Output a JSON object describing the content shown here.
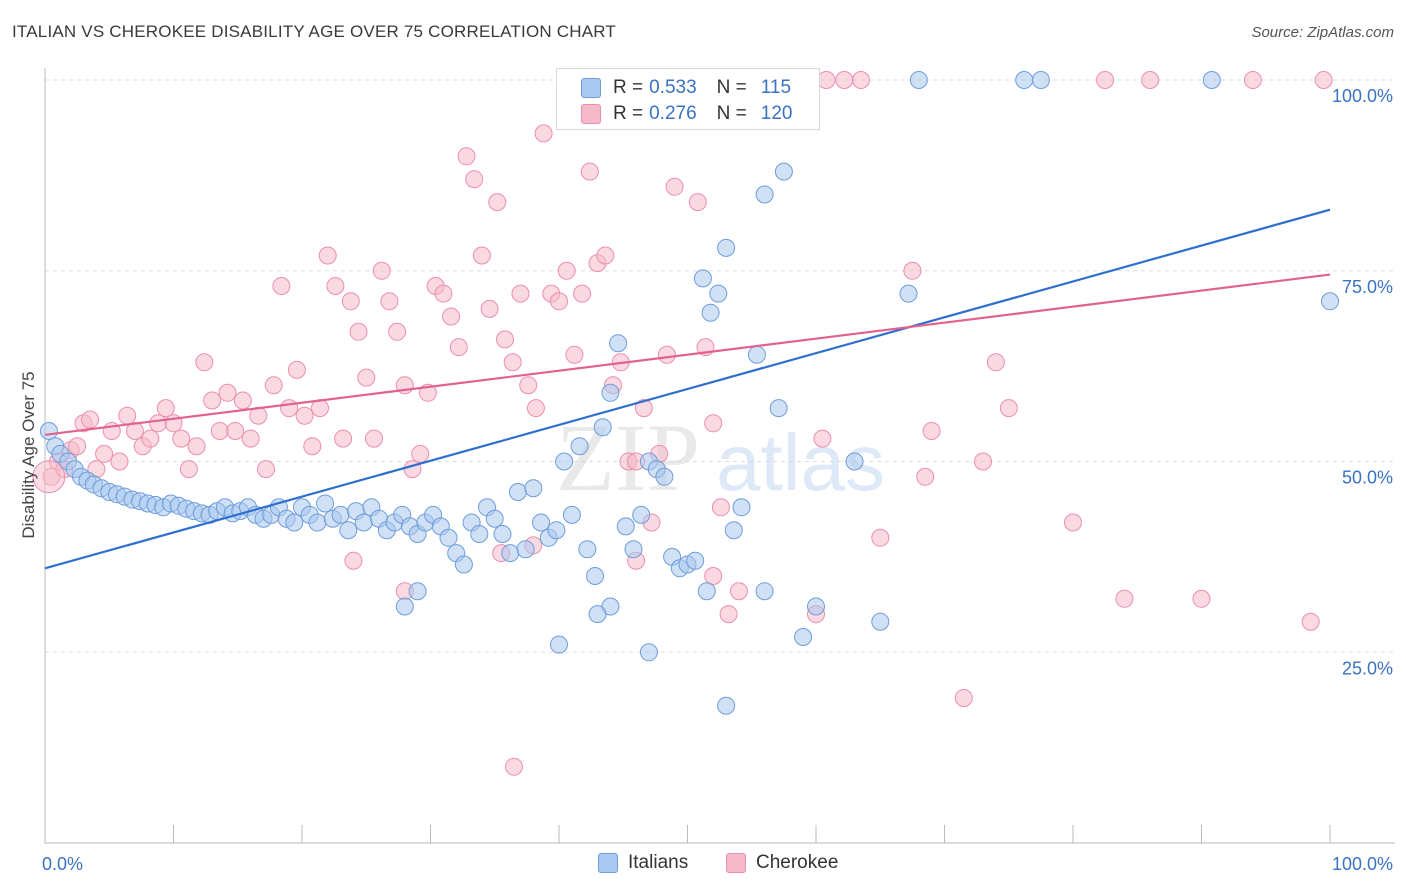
{
  "title": "ITALIAN VS CHEROKEE DISABILITY AGE OVER 75 CORRELATION CHART",
  "source": "Source: ZipAtlas.com",
  "watermark": {
    "zip": "ZIP",
    "atlas": "atlas"
  },
  "legend_top": {
    "rows": [
      {
        "r_label": "R =",
        "r_value": "0.533",
        "n_label": "N =",
        "n_value": "115"
      },
      {
        "r_label": "R =",
        "r_value": "0.276",
        "n_label": "N =",
        "n_value": "120"
      }
    ]
  },
  "legend_bottom": {
    "italians": "Italians",
    "cherokee": "Cherokee"
  },
  "colors": {
    "blue_fill": "#a9c8ef",
    "blue_stroke": "#6f9ddb",
    "blue_line": "#2f6fcf",
    "pink_fill": "#f6b9cb",
    "pink_stroke": "#ec8fab",
    "pink_line": "#e2628f",
    "tick_label": "#3a72c4",
    "grid": "#dedede",
    "axis": "#bbbbbb"
  },
  "chart_data": {
    "type": "scatter",
    "title": "ITALIAN VS CHEROKEE DISABILITY AGE OVER 75 CORRELATION CHART",
    "xlabel": "",
    "ylabel": "Disability Age Over 75",
    "xlim": [
      0,
      100
    ],
    "ylim": [
      0,
      103
    ],
    "x_tick_labels": [
      "0.0%",
      "100.0%"
    ],
    "y_ticks": [
      25,
      50,
      75,
      100
    ],
    "y_tick_labels": [
      "25.0%",
      "50.0%",
      "75.0%",
      "100.0%"
    ],
    "grid": true,
    "legend_position": "top-center",
    "series": [
      {
        "name": "Italians",
        "r": 0.533,
        "n": 115,
        "trend": {
          "x": [
            0,
            100
          ],
          "y": [
            36,
            83
          ]
        },
        "points": [
          [
            0.3,
            54
          ],
          [
            0.8,
            52
          ],
          [
            1.2,
            51
          ],
          [
            1.8,
            50
          ],
          [
            2.3,
            49
          ],
          [
            2.8,
            48
          ],
          [
            3.3,
            47.5
          ],
          [
            3.8,
            47
          ],
          [
            4.4,
            46.5
          ],
          [
            5.0,
            46
          ],
          [
            5.6,
            45.7
          ],
          [
            6.2,
            45.4
          ],
          [
            6.8,
            45
          ],
          [
            7.4,
            44.8
          ],
          [
            8.0,
            44.5
          ],
          [
            8.6,
            44.3
          ],
          [
            9.2,
            44
          ],
          [
            9.8,
            44.5
          ],
          [
            10.4,
            44.2
          ],
          [
            11.0,
            43.8
          ],
          [
            11.6,
            43.5
          ],
          [
            12.2,
            43.2
          ],
          [
            12.8,
            43
          ],
          [
            13.4,
            43.5
          ],
          [
            14.0,
            44
          ],
          [
            14.6,
            43.2
          ],
          [
            15.2,
            43.5
          ],
          [
            15.8,
            44
          ],
          [
            16.4,
            43
          ],
          [
            17.0,
            42.5
          ],
          [
            17.6,
            43
          ],
          [
            18.2,
            44
          ],
          [
            18.8,
            42.5
          ],
          [
            19.4,
            42
          ],
          [
            20.0,
            44
          ],
          [
            20.6,
            43
          ],
          [
            21.2,
            42
          ],
          [
            21.8,
            44.5
          ],
          [
            22.4,
            42.5
          ],
          [
            23.0,
            43
          ],
          [
            23.6,
            41
          ],
          [
            24.2,
            43.5
          ],
          [
            24.8,
            42
          ],
          [
            25.4,
            44
          ],
          [
            26.0,
            42.5
          ],
          [
            26.6,
            41
          ],
          [
            27.2,
            42
          ],
          [
            27.8,
            43
          ],
          [
            28.4,
            41.5
          ],
          [
            29.0,
            40.5
          ],
          [
            29.6,
            42
          ],
          [
            30.2,
            43
          ],
          [
            30.8,
            41.5
          ],
          [
            31.4,
            40
          ],
          [
            32.0,
            38
          ],
          [
            32.6,
            36.5
          ],
          [
            33.2,
            42
          ],
          [
            33.8,
            40.5
          ],
          [
            34.4,
            44
          ],
          [
            35.0,
            42.5
          ],
          [
            35.6,
            40.5
          ],
          [
            36.2,
            38
          ],
          [
            36.8,
            46
          ],
          [
            37.4,
            38.5
          ],
          [
            38.0,
            46.5
          ],
          [
            38.6,
            42
          ],
          [
            39.2,
            40
          ],
          [
            39.8,
            41
          ],
          [
            40.4,
            50
          ],
          [
            41.0,
            43
          ],
          [
            41.6,
            52
          ],
          [
            42.2,
            38.5
          ],
          [
            42.8,
            35
          ],
          [
            43.4,
            54.5
          ],
          [
            44.0,
            59
          ],
          [
            44.6,
            65.5
          ],
          [
            45.2,
            41.5
          ],
          [
            45.8,
            38.5
          ],
          [
            46.4,
            43
          ],
          [
            47.0,
            50
          ],
          [
            47.6,
            49
          ],
          [
            48.2,
            48
          ],
          [
            48.8,
            37.5
          ],
          [
            49.4,
            36
          ],
          [
            50.0,
            36.5
          ],
          [
            50.6,
            37
          ],
          [
            51.2,
            74
          ],
          [
            51.8,
            69.5
          ],
          [
            52.4,
            72
          ],
          [
            53.0,
            78
          ],
          [
            53.6,
            41
          ],
          [
            54.2,
            44
          ],
          [
            55.4,
            64
          ],
          [
            56.0,
            85
          ],
          [
            57.1,
            57
          ],
          [
            57.5,
            88
          ],
          [
            63.0,
            50
          ],
          [
            67.2,
            72
          ],
          [
            68.0,
            100
          ],
          [
            76.2,
            100
          ],
          [
            77.5,
            100
          ],
          [
            90.8,
            100
          ],
          [
            100.0,
            71
          ],
          [
            51.5,
            33
          ],
          [
            53.0,
            18
          ],
          [
            47.0,
            25
          ],
          [
            40.0,
            26
          ],
          [
            44.0,
            31
          ],
          [
            56.0,
            33
          ],
          [
            43.0,
            30
          ],
          [
            59.0,
            27
          ],
          [
            60.0,
            31
          ],
          [
            28.0,
            31
          ],
          [
            29.0,
            33
          ],
          [
            65.0,
            29
          ]
        ]
      },
      {
        "name": "Cherokee",
        "r": 0.276,
        "n": 120,
        "trend": {
          "x": [
            0,
            100
          ],
          "y": [
            53.5,
            74.5
          ]
        },
        "points": [
          [
            0.5,
            48
          ],
          [
            1.0,
            50
          ],
          [
            1.5,
            49
          ],
          [
            2.0,
            51.5
          ],
          [
            2.5,
            52
          ],
          [
            3.0,
            55
          ],
          [
            3.5,
            55.5
          ],
          [
            4.0,
            49
          ],
          [
            4.6,
            51
          ],
          [
            5.2,
            54
          ],
          [
            5.8,
            50
          ],
          [
            6.4,
            56
          ],
          [
            7.0,
            54
          ],
          [
            7.6,
            52
          ],
          [
            8.2,
            53
          ],
          [
            8.8,
            55
          ],
          [
            9.4,
            57
          ],
          [
            10.0,
            55
          ],
          [
            10.6,
            53
          ],
          [
            11.2,
            49
          ],
          [
            11.8,
            52
          ],
          [
            12.4,
            63
          ],
          [
            13.0,
            58
          ],
          [
            13.6,
            54
          ],
          [
            14.2,
            59
          ],
          [
            14.8,
            54
          ],
          [
            15.4,
            58
          ],
          [
            16.0,
            53
          ],
          [
            16.6,
            56
          ],
          [
            17.2,
            49
          ],
          [
            17.8,
            60
          ],
          [
            18.4,
            73
          ],
          [
            19.0,
            57
          ],
          [
            19.6,
            62
          ],
          [
            20.2,
            56
          ],
          [
            20.8,
            52
          ],
          [
            21.4,
            57
          ],
          [
            22.0,
            77
          ],
          [
            22.6,
            73
          ],
          [
            23.2,
            53
          ],
          [
            23.8,
            71
          ],
          [
            24.4,
            67
          ],
          [
            25.0,
            61
          ],
          [
            25.6,
            53
          ],
          [
            26.2,
            75
          ],
          [
            26.8,
            71
          ],
          [
            27.4,
            67
          ],
          [
            28.0,
            60
          ],
          [
            28.6,
            49
          ],
          [
            29.2,
            51
          ],
          [
            29.8,
            59
          ],
          [
            30.4,
            73
          ],
          [
            31.0,
            72
          ],
          [
            31.6,
            69
          ],
          [
            32.2,
            65
          ],
          [
            32.8,
            90
          ],
          [
            33.4,
            87
          ],
          [
            34.0,
            77
          ],
          [
            34.6,
            70
          ],
          [
            35.2,
            84
          ],
          [
            35.8,
            66
          ],
          [
            36.4,
            63
          ],
          [
            37.0,
            72
          ],
          [
            37.6,
            60
          ],
          [
            38.2,
            57
          ],
          [
            38.8,
            93
          ],
          [
            39.4,
            72
          ],
          [
            40.0,
            71
          ],
          [
            40.6,
            75
          ],
          [
            41.2,
            64
          ],
          [
            41.8,
            72
          ],
          [
            42.4,
            88
          ],
          [
            43.0,
            76
          ],
          [
            43.6,
            77
          ],
          [
            44.2,
            60
          ],
          [
            44.8,
            63
          ],
          [
            45.4,
            50
          ],
          [
            46.0,
            50
          ],
          [
            46.6,
            57
          ],
          [
            47.2,
            42
          ],
          [
            47.8,
            51
          ],
          [
            48.4,
            64
          ],
          [
            49.0,
            86
          ],
          [
            49.6,
            100
          ],
          [
            50.2,
            100
          ],
          [
            50.8,
            84
          ],
          [
            51.4,
            65
          ],
          [
            52.0,
            55
          ],
          [
            52.6,
            44
          ],
          [
            53.2,
            30
          ],
          [
            54.0,
            33
          ],
          [
            55.0,
            100
          ],
          [
            60.0,
            30
          ],
          [
            60.8,
            100
          ],
          [
            62.2,
            100
          ],
          [
            63.5,
            100
          ],
          [
            65.0,
            40
          ],
          [
            67.5,
            75
          ],
          [
            68.5,
            48
          ],
          [
            69.0,
            54
          ],
          [
            73.0,
            50
          ],
          [
            74.0,
            63
          ],
          [
            75.0,
            57
          ],
          [
            80.0,
            42
          ],
          [
            82.5,
            100
          ],
          [
            86.0,
            100
          ],
          [
            90.0,
            32
          ],
          [
            94.0,
            100
          ],
          [
            98.5,
            29
          ],
          [
            99.5,
            100
          ],
          [
            24.0,
            37
          ],
          [
            36.5,
            10
          ],
          [
            28.0,
            33
          ],
          [
            35.5,
            38
          ],
          [
            52.0,
            35
          ],
          [
            60.5,
            53
          ],
          [
            71.5,
            19
          ],
          [
            46.0,
            37
          ],
          [
            38.0,
            39
          ],
          [
            84.0,
            32
          ]
        ]
      }
    ]
  }
}
